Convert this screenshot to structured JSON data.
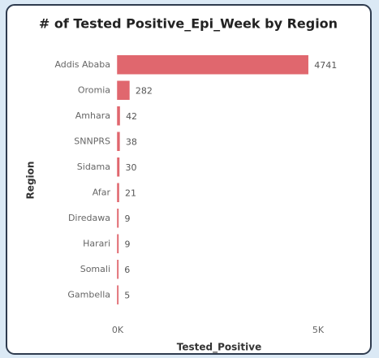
{
  "chart_data": {
    "type": "bar",
    "orientation": "horizontal",
    "title": "# of Tested Positive_Epi_Week by Region",
    "x_label": "Tested_Positive",
    "y_label": "Region",
    "categories": [
      "Addis Ababa",
      "Oromia",
      "Amhara",
      "SNNPRS",
      "Sidama",
      "Afar",
      "Diredawa",
      "Harari",
      "Somali",
      "Gambella"
    ],
    "values": [
      4741,
      282,
      42,
      38,
      30,
      21,
      9,
      9,
      6,
      5
    ],
    "color": "#e0676e",
    "xlim": [
      0,
      5000
    ],
    "xticks": [
      {
        "value": 0,
        "label": "0K"
      },
      {
        "value": 5000,
        "label": "5K"
      }
    ],
    "grid": false
  }
}
